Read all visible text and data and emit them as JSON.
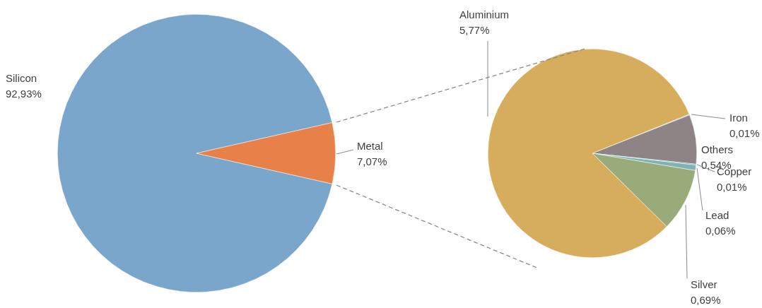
{
  "chart_data": [
    {
      "type": "pie",
      "categories": [
        "Silicon",
        "Metal"
      ],
      "values": [
        92.93,
        7.07
      ],
      "colors": [
        "#7aa6cc",
        "#e8804a"
      ],
      "value_labels": [
        "92,93%",
        "7,07%"
      ]
    },
    {
      "type": "pie",
      "categories": [
        "Iron",
        "Others",
        "Copper",
        "Lead",
        "Silver",
        "Aluminium"
      ],
      "values": [
        0.01,
        0.54,
        0.01,
        0.06,
        0.69,
        5.77
      ],
      "colors": [
        "#8cc4c4",
        "#8f8485",
        "#5a9fa8",
        "#7fb3b3",
        "#9aab7a",
        "#d6ad5c"
      ],
      "value_labels": [
        "0,01%",
        "0,54%",
        "0,01%",
        "0,06%",
        "0,69%",
        "5,77%"
      ]
    }
  ]
}
